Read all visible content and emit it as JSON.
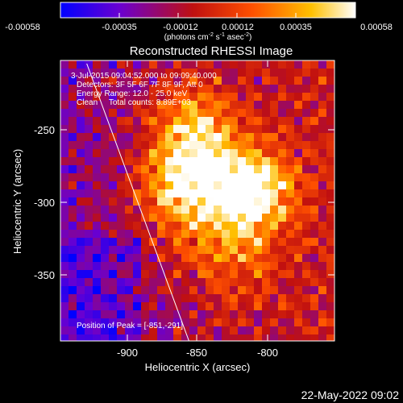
{
  "colorbar": {
    "ticks": [
      "-0.00058",
      "-0.00035",
      "-0.00012",
      "0.00012",
      "0.00035",
      "0.00058"
    ],
    "unit_label": "(photons cm",
    "unit_exp1": "-2",
    "unit_mid": " s",
    "unit_exp2": "-1",
    "unit_tail": " asec",
    "unit_exp3": "-2",
    "unit_close": ")"
  },
  "title": "Reconstructed RHESSI Image",
  "annotations": {
    "time_range": "3-Jul-2015 09:04:52.000 to 09:09:40.000",
    "detectors": "Detectors: 3F 5F 6F 7F 8F 9F, Att 0",
    "energy": "Energy Range: 12.0 - 25.0 keV",
    "clean_counts": "Clean     Total counts: 8.89E+03",
    "peak": "Position of Peak = [-851,-291]"
  },
  "axes": {
    "xlabel": "Heliocentric X (arcsec)",
    "ylabel": "Heliocentric Y (arcsec)",
    "xticks": [
      "-900",
      "-850",
      "-800"
    ],
    "yticks": [
      "-250",
      "-300",
      "-350"
    ]
  },
  "footer_timestamp": "22-May-2022 09:02",
  "colors": {
    "background": "#000000",
    "foreground": "#ffffff",
    "colormap": [
      "#0000ff",
      "#6a00d0",
      "#c01010",
      "#ff5000",
      "#ffc000",
      "#ffffff"
    ]
  },
  "chart_data": {
    "type": "heatmap",
    "title": "Reconstructed RHESSI Image",
    "xlabel": "Heliocentric X (arcsec)",
    "ylabel": "Heliocentric Y (arcsec)",
    "xlim": [
      -945,
      -768
    ],
    "ylim": [
      -395,
      -218
    ],
    "x_ticks": [
      -900,
      -850,
      -800
    ],
    "y_ticks": [
      -250,
      -300,
      -350
    ],
    "colorbar_range": [
      -0.00058,
      0.00058
    ],
    "colorbar_ticks": [
      -0.00058,
      -0.00035,
      -0.00012,
      0.00012,
      0.00035,
      0.00058
    ],
    "colorbar_unit": "photons cm^-2 s^-1 asec^-2",
    "peak_position": [
      -851,
      -291
    ],
    "limb_line": [
      [
        -928,
        -220
      ],
      [
        -862,
        -395
      ]
    ],
    "grid": false
  }
}
